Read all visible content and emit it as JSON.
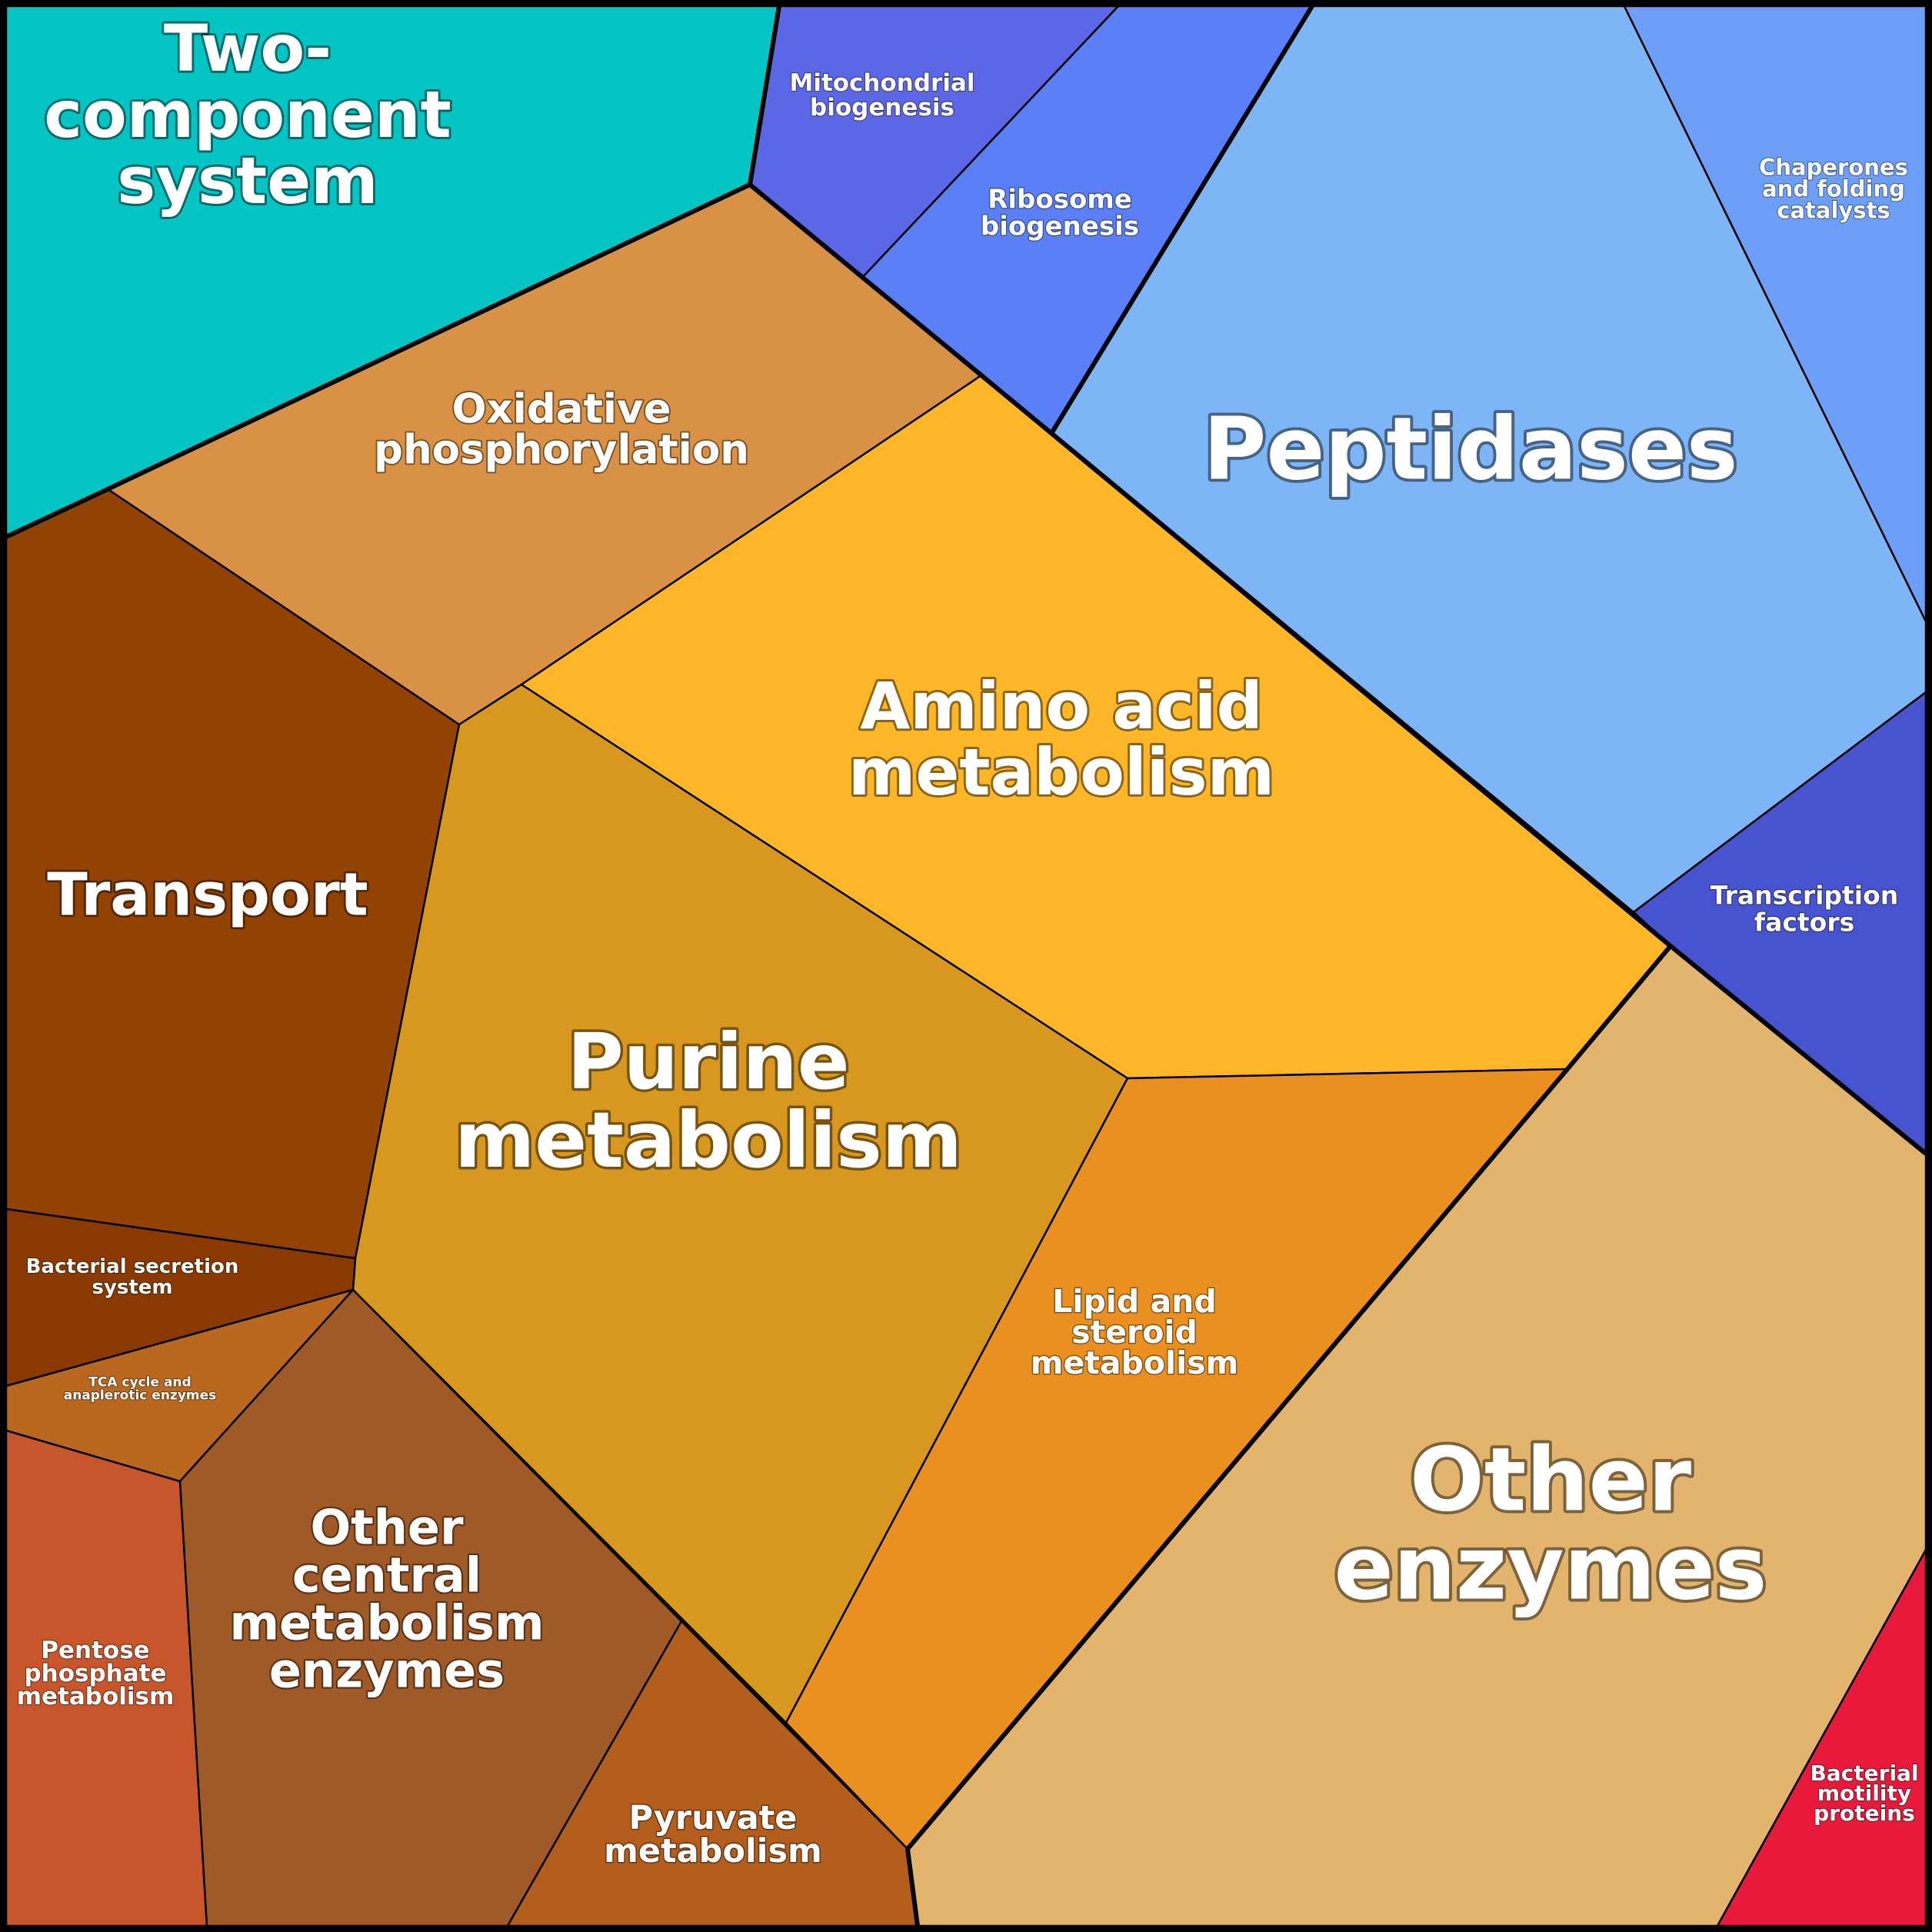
{
  "chart_data": {
    "type": "voronoi-treemap",
    "title": "",
    "cells": [
      {
        "key": "two_component",
        "label_lines": [
          "Two-",
          "component",
          "system"
        ],
        "color": "#04C4C4"
      },
      {
        "key": "mito",
        "label_lines": [
          "Mitochondrial",
          "biogenesis"
        ],
        "color": "#5C67E6"
      },
      {
        "key": "ribosome",
        "label_lines": [
          "Ribosome",
          "biogenesis"
        ],
        "color": "#5A7FF6"
      },
      {
        "key": "peptidases",
        "label_lines": [
          "Peptidases"
        ],
        "color": "#7EB5F6"
      },
      {
        "key": "chaperones",
        "label_lines": [
          "Chaperones",
          "and folding",
          "catalysts"
        ],
        "color": "#6E9FF8"
      },
      {
        "key": "oxphos",
        "label_lines": [
          "Oxidative",
          "phosphorylation"
        ],
        "color": "#D99145"
      },
      {
        "key": "amino",
        "label_lines": [
          "Amino acid",
          "metabolism"
        ],
        "color": "#FDB628"
      },
      {
        "key": "transcription",
        "label_lines": [
          "Transcription",
          "factors"
        ],
        "color": "#4853D0"
      },
      {
        "key": "transport",
        "label_lines": [
          "Transport"
        ],
        "color": "#924203"
      },
      {
        "key": "purine",
        "label_lines": [
          "Purine",
          "metabolism"
        ],
        "color": "#D89820"
      },
      {
        "key": "lipid",
        "label_lines": [
          "Lipid and",
          "steroid",
          "metabolism"
        ],
        "color": "#EA9020"
      },
      {
        "key": "other_enzymes",
        "label_lines": [
          "Other",
          "enzymes"
        ],
        "color": "#E2B46E"
      },
      {
        "key": "bact_secretion",
        "label_lines": [
          "Bacterial secretion",
          "system"
        ],
        "color": "#8A3A00"
      },
      {
        "key": "tca",
        "label_lines": [
          "TCA cycle and",
          "anaplerotic enzymes"
        ],
        "color": "#BA6820"
      },
      {
        "key": "pentose",
        "label_lines": [
          "Pentose",
          "phosphate",
          "metabolism"
        ],
        "color": "#C8562C"
      },
      {
        "key": "other_central",
        "label_lines": [
          "Other",
          "central",
          "metabolism",
          "enzymes"
        ],
        "color": "#A05A28"
      },
      {
        "key": "pyruvate",
        "label_lines": [
          "Pyruvate",
          "metabolism"
        ],
        "color": "#B45E1E"
      },
      {
        "key": "motility",
        "label_lines": [
          "Bacterial",
          "motility",
          "proteins"
        ],
        "color": "#E8193A"
      }
    ]
  }
}
